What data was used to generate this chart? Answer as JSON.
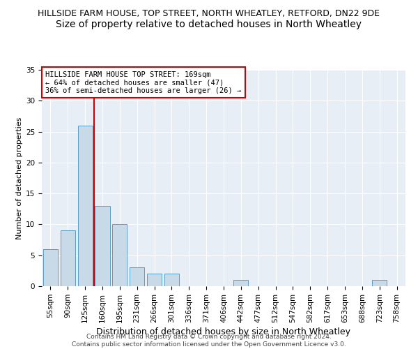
{
  "title": "HILLSIDE FARM HOUSE, TOP STREET, NORTH WHEATLEY, RETFORD, DN22 9DE",
  "subtitle": "Size of property relative to detached houses in North Wheatley",
  "xlabel": "Distribution of detached houses by size in North Wheatley",
  "ylabel": "Number of detached properties",
  "footer_line1": "Contains HM Land Registry data © Crown copyright and database right 2024.",
  "footer_line2": "Contains public sector information licensed under the Open Government Licence v3.0.",
  "bin_labels": [
    "55sqm",
    "90sqm",
    "125sqm",
    "160sqm",
    "195sqm",
    "231sqm",
    "266sqm",
    "301sqm",
    "336sqm",
    "371sqm",
    "406sqm",
    "442sqm",
    "477sqm",
    "512sqm",
    "547sqm",
    "582sqm",
    "617sqm",
    "653sqm",
    "688sqm",
    "723sqm",
    "758sqm"
  ],
  "bar_values": [
    6,
    9,
    26,
    13,
    10,
    3,
    2,
    2,
    0,
    0,
    0,
    1,
    0,
    0,
    0,
    0,
    0,
    0,
    0,
    1,
    0
  ],
  "bar_color": "#C8D9E8",
  "bar_edgecolor": "#5A9CC5",
  "reference_line_index": 3,
  "reference_line_color": "#CC0000",
  "ylim": [
    0,
    35
  ],
  "yticks": [
    0,
    5,
    10,
    15,
    20,
    25,
    30,
    35
  ],
  "annotation_text": "HILLSIDE FARM HOUSE TOP STREET: 169sqm\n← 64% of detached houses are smaller (47)\n36% of semi-detached houses are larger (26) →",
  "annotation_box_edgecolor": "#CC0000",
  "background_color": "#E8EEF5",
  "grid_color": "#FFFFFF",
  "title_fontsize": 9,
  "subtitle_fontsize": 10,
  "xlabel_fontsize": 9,
  "ylabel_fontsize": 8,
  "tick_fontsize": 7.5,
  "footer_fontsize": 6.5
}
